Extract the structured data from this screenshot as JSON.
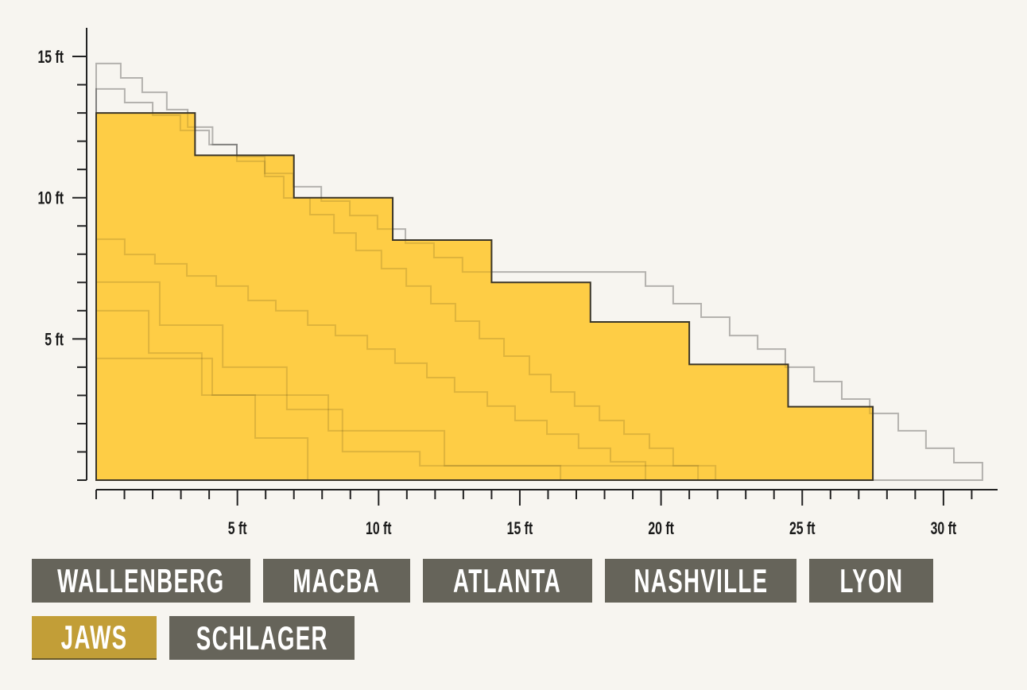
{
  "chart_data": {
    "type": "step-area",
    "title": "",
    "xlabel": "",
    "ylabel": "",
    "xlim": [
      0,
      32
    ],
    "ylim": [
      0,
      16
    ],
    "x_ticks": [
      {
        "value": 5,
        "label": "5 ft"
      },
      {
        "value": 10,
        "label": "10 ft"
      },
      {
        "value": 15,
        "label": "15 ft"
      },
      {
        "value": 20,
        "label": "20 ft"
      },
      {
        "value": 25,
        "label": "25 ft"
      },
      {
        "value": 30,
        "label": "30 ft"
      }
    ],
    "y_ticks": [
      {
        "value": 5,
        "label": "5 ft"
      },
      {
        "value": 10,
        "label": "10 ft"
      },
      {
        "value": 15,
        "label": "15 ft"
      }
    ],
    "minor_tick_step": 1,
    "highlighted": "Jaws",
    "series": [
      {
        "name": "Wallenberg",
        "steps": {
          "x_end": [
            0.87,
            1.63,
            2.5,
            3.24,
            4.12,
            4.98,
            5.97,
            6.98,
            7.97,
            8.98,
            9.96,
            10.95,
            11.96,
            12.97,
            19.45,
            20.43,
            21.42,
            22.43,
            23.42,
            24.4,
            25.42,
            26.4,
            27.39,
            28.4,
            29.38,
            30.37,
            31.38
          ],
          "height": [
            14.75,
            14.24,
            13.73,
            13.12,
            12.5,
            11.88,
            11.46,
            10.86,
            10.39,
            9.88,
            9.37,
            8.89,
            8.39,
            7.88,
            7.37,
            6.87,
            6.25,
            5.77,
            5.12,
            4.64,
            4.0,
            3.49,
            2.87,
            2.36,
            1.75,
            1.13,
            0.62
          ]
        }
      },
      {
        "name": "MACBA",
        "steps": {
          "x_end": [
            1.01,
            2.0,
            2.98,
            4.0,
            4.98,
            5.97,
            6.64,
            7.57,
            8.42,
            9.2,
            10.1,
            10.98,
            11.85,
            12.72,
            13.57,
            14.44,
            15.34,
            16.1,
            16.94,
            17.82,
            18.69,
            19.59,
            20.43,
            21.93
          ],
          "height": [
            13.85,
            13.37,
            12.92,
            12.38,
            11.88,
            11.29,
            10.75,
            9.99,
            9.4,
            8.75,
            8.13,
            7.49,
            6.87,
            6.25,
            5.63,
            5.01,
            4.39,
            3.74,
            3.12,
            2.62,
            2.11,
            1.63,
            1.13,
            0.51
          ]
        }
      },
      {
        "name": "Atlanta",
        "steps": {
          "x_end": [
            1.01,
            2.08,
            3.21,
            4.25,
            5.38,
            6.36,
            7.49,
            8.47,
            9.6,
            10.58,
            11.71,
            12.69,
            13.85,
            14.83,
            15.96,
            17.08,
            18.21,
            19.45
          ],
          "height": [
            8.53,
            7.99,
            7.66,
            7.23,
            6.87,
            6.36,
            6.0,
            5.49,
            5.12,
            4.64,
            4.14,
            3.63,
            3.12,
            2.62,
            2.11,
            1.63,
            1.13,
            0.65
          ]
        }
      },
      {
        "name": "Nashville",
        "steps": {
          "x_end": [
            2.25,
            4.48,
            6.75,
            8.72,
            11.46,
            16.44
          ],
          "height": [
            7.01,
            5.49,
            4.0,
            2.5,
            1.01,
            0.51
          ]
        }
      },
      {
        "name": "Lyon",
        "steps": {
          "x_end": [
            1.86,
            3.74,
            5.63,
            7.49
          ],
          "height": [
            6.0,
            4.5,
            3.01,
            1.49
          ]
        }
      },
      {
        "name": "Jaws",
        "steps": {
          "x_end": [
            3.5,
            7,
            10.5,
            14,
            17.5,
            21,
            24.5,
            27.5
          ],
          "height": [
            13,
            11.5,
            10,
            8.5,
            7,
            5.6,
            4.1,
            2.6
          ]
        }
      },
      {
        "name": "Schlager",
        "steps": {
          "x_end": [
            4.11,
            8.22,
            12.33,
            21.31
          ],
          "height": [
            4.31,
            3.01,
            1.75,
            0.51
          ]
        }
      }
    ]
  },
  "colors": {
    "background": "#f7f5f0",
    "highlight_fill": "#fecd45",
    "highlight_stroke": "#3a3528",
    "other_stroke": "#000000",
    "button": "#66645a",
    "button_active": "#c29e37",
    "axis": "#222222"
  },
  "buttons": [
    {
      "label": "WALLENBERG",
      "active": false
    },
    {
      "label": "MACBA",
      "active": false
    },
    {
      "label": "ATLANTA",
      "active": false
    },
    {
      "label": "NASHVILLE",
      "active": false
    },
    {
      "label": "LYON",
      "active": false
    },
    {
      "label": "JAWS",
      "active": true
    },
    {
      "label": "SCHLAGER",
      "active": false
    }
  ]
}
